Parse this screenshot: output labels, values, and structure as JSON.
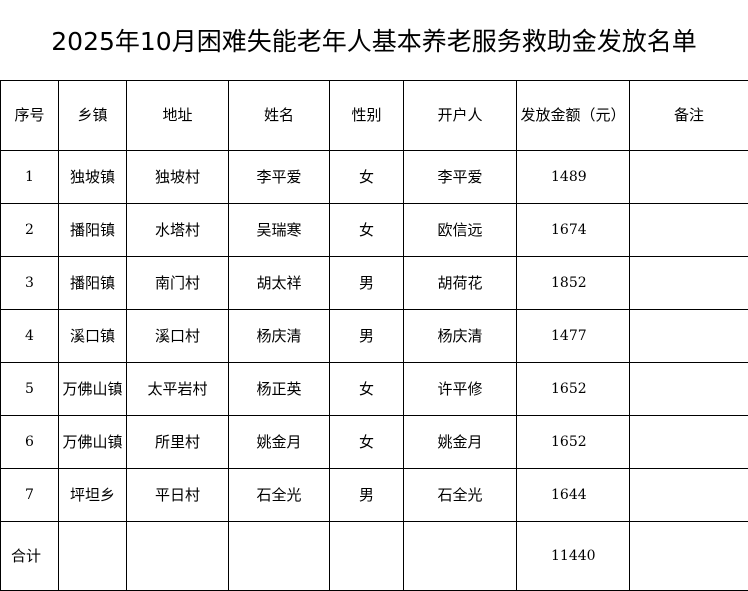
{
  "title": "2025年10月困难失能老年人基本养老服务救助金发放名单",
  "headers": [
    "序号",
    "乡镇",
    "地址",
    "姓名",
    "性别",
    "开户人",
    "发放金额（元）",
    "备注"
  ],
  "rows": [
    [
      "1",
      "独坡镇",
      "独坡村",
      "李平爱",
      "女",
      "李平爱",
      "1489",
      ""
    ],
    [
      "2",
      "播阳镇",
      "水塔村",
      "吴瑞寒",
      "女",
      "欧信远",
      "1674",
      ""
    ],
    [
      "3",
      "播阳镇",
      "南门村",
      "胡太祥",
      "男",
      "胡荷花",
      "1852",
      ""
    ],
    [
      "4",
      "溪口镇",
      "溪口村",
      "杨庆清",
      "男",
      "杨庆清",
      "1477",
      ""
    ],
    [
      "5",
      "万佛山镇",
      "太平岩村",
      "杨正英",
      "女",
      "许平修",
      "1652",
      ""
    ],
    [
      "6",
      "万佛山镇",
      "所里村",
      "姚金月",
      "女",
      "姚金月",
      "1652",
      ""
    ],
    [
      "7",
      "坪坦乡",
      "平日村",
      "石全光",
      "男",
      "石全光",
      "1644",
      ""
    ]
  ],
  "total": {
    "label": "合计",
    "amount": "11440"
  }
}
